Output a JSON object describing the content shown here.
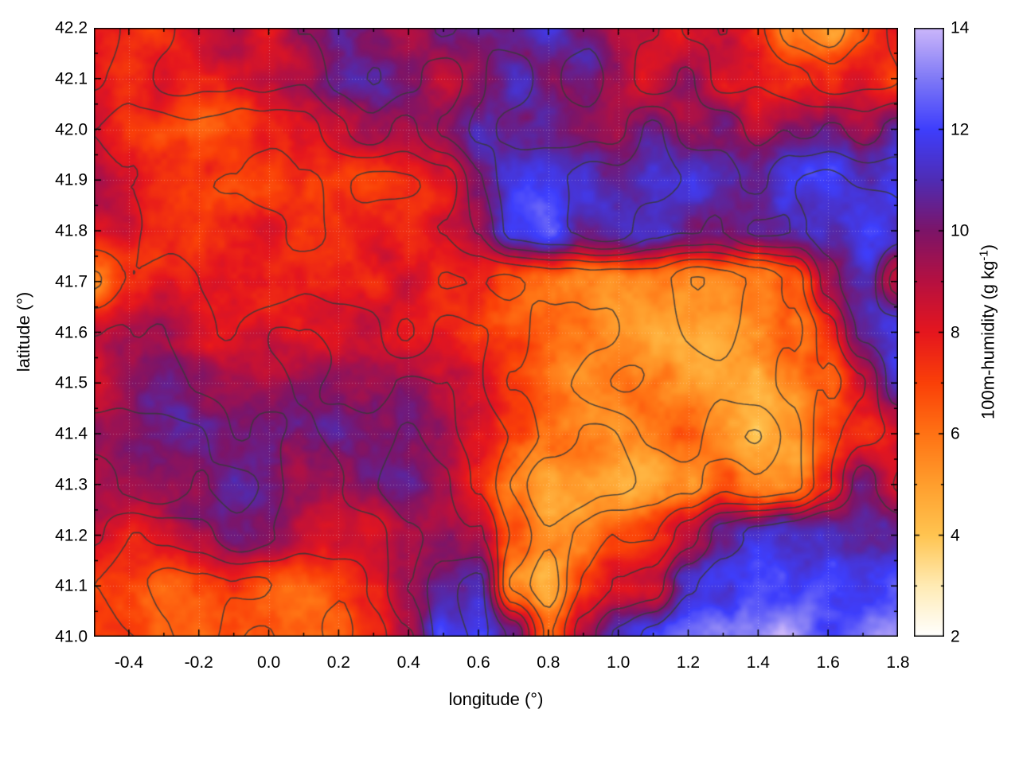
{
  "chart_data": {
    "type": "heatmap",
    "title": "",
    "xlabel": "longitude (°)",
    "ylabel": "latitude (°)",
    "colorbar_label": {
      "text": "100m-humidity (g kg",
      "sup": "-1",
      "end": ")"
    },
    "x_range": [
      -0.5,
      1.8
    ],
    "y_range": [
      41.0,
      42.2
    ],
    "z_range": [
      2,
      14
    ],
    "x_tick_values": [
      -0.4,
      -0.2,
      0.0,
      0.2,
      0.4,
      0.6,
      0.8,
      1.0,
      1.2,
      1.4,
      1.6,
      1.8
    ],
    "x_tick_labels": [
      "-0.4",
      "-0.2",
      "0.0",
      "0.2",
      "0.4",
      "0.6",
      "0.8",
      "1.0",
      "1.2",
      "1.4",
      "1.6",
      "1.8"
    ],
    "y_tick_values": [
      41.0,
      41.1,
      41.2,
      41.3,
      41.4,
      41.5,
      41.6,
      41.7,
      41.8,
      41.9,
      42.0,
      42.1,
      42.2
    ],
    "y_tick_labels": [
      "41.0",
      "41.1",
      "41.2",
      "41.3",
      "41.4",
      "41.5",
      "41.6",
      "41.7",
      "41.8",
      "41.9",
      "42.0",
      "42.1",
      "42.2"
    ],
    "colorbar_tick_values": [
      2,
      4,
      6,
      8,
      10,
      12,
      14
    ],
    "colorbar_tick_labels": [
      "2",
      "4",
      "6",
      "8",
      "10",
      "12",
      "14"
    ],
    "grid_lon_start": -0.5,
    "grid_lon_step": 0.1,
    "grid_lat_start": 42.2,
    "grid_lat_step": -0.1,
    "humidity_grid": [
      [
        8.5,
        8.0,
        8.0,
        8.5,
        9.0,
        8.5,
        9.5,
        10.5,
        10.0,
        9.0,
        10.5,
        10.0,
        9.5,
        10.5,
        9.5,
        8.5,
        9.0,
        8.0,
        8.5,
        7.5,
        6.0,
        5.5,
        7.0,
        8.0
      ],
      [
        8.0,
        7.5,
        8.5,
        8.0,
        8.5,
        9.0,
        9.0,
        10.0,
        10.5,
        9.5,
        9.0,
        10.0,
        10.5,
        9.5,
        10.5,
        9.5,
        8.5,
        9.5,
        8.0,
        8.5,
        8.0,
        7.5,
        8.5,
        7.5
      ],
      [
        8.0,
        7.0,
        6.5,
        6.5,
        7.0,
        7.5,
        8.0,
        8.5,
        9.5,
        8.5,
        9.5,
        10.5,
        10.0,
        10.5,
        10.0,
        9.5,
        10.5,
        9.0,
        9.5,
        8.5,
        9.5,
        10.0,
        9.0,
        10.5
      ],
      [
        8.5,
        8.0,
        7.5,
        7.0,
        6.5,
        6.0,
        7.0,
        7.5,
        7.0,
        7.0,
        7.5,
        9.5,
        11.0,
        11.5,
        11.5,
        11.0,
        11.5,
        11.0,
        10.5,
        10.0,
        11.0,
        11.5,
        11.0,
        11.5
      ],
      [
        8.0,
        8.5,
        8.0,
        7.5,
        8.0,
        8.0,
        7.5,
        8.0,
        8.0,
        7.5,
        8.0,
        9.0,
        11.5,
        12.0,
        11.5,
        11.5,
        11.0,
        10.5,
        10.0,
        10.5,
        11.0,
        11.5,
        12.0,
        11.5
      ],
      [
        6.5,
        8.0,
        8.5,
        8.0,
        8.5,
        8.0,
        8.5,
        8.0,
        7.5,
        8.0,
        7.5,
        7.5,
        7.0,
        6.5,
        6.0,
        5.5,
        5.5,
        5.0,
        5.5,
        6.0,
        7.0,
        10.0,
        11.5,
        8.0
      ],
      [
        8.5,
        9.0,
        9.5,
        9.0,
        8.5,
        9.0,
        8.5,
        8.0,
        8.5,
        7.5,
        8.0,
        7.5,
        7.0,
        6.5,
        6.0,
        5.5,
        5.0,
        4.8,
        4.5,
        5.0,
        6.0,
        8.0,
        11.0,
        11.5
      ],
      [
        9.0,
        9.5,
        10.0,
        9.5,
        9.5,
        9.0,
        9.5,
        9.0,
        8.5,
        9.0,
        8.5,
        8.0,
        7.0,
        6.5,
        6.0,
        6.0,
        5.5,
        5.0,
        4.5,
        4.8,
        5.5,
        6.5,
        8.5,
        11.0
      ],
      [
        9.5,
        10.0,
        10.0,
        10.0,
        9.5,
        10.0,
        9.5,
        9.5,
        9.0,
        9.5,
        9.0,
        8.0,
        7.0,
        6.0,
        5.5,
        5.5,
        6.0,
        6.5,
        5.0,
        4.5,
        5.0,
        7.0,
        8.0,
        8.5
      ],
      [
        9.0,
        9.5,
        10.0,
        9.5,
        10.0,
        10.0,
        9.5,
        9.0,
        9.5,
        10.0,
        9.5,
        8.0,
        6.0,
        5.0,
        4.5,
        4.5,
        4.8,
        5.5,
        6.5,
        5.5,
        6.0,
        8.0,
        10.5,
        9.0
      ],
      [
        8.5,
        8.0,
        8.5,
        9.0,
        9.5,
        9.0,
        8.5,
        9.0,
        8.5,
        9.5,
        10.0,
        9.5,
        7.0,
        5.5,
        6.0,
        6.5,
        7.0,
        8.5,
        10.5,
        11.5,
        11.5,
        12.0,
        11.5,
        11.0
      ],
      [
        7.0,
        6.5,
        6.0,
        6.5,
        7.0,
        6.5,
        6.0,
        6.5,
        7.5,
        9.0,
        11.0,
        11.5,
        5.5,
        4.5,
        7.0,
        8.0,
        8.5,
        11.0,
        12.0,
        12.5,
        12.0,
        12.5,
        12.0,
        12.5
      ],
      [
        7.5,
        7.0,
        6.5,
        6.0,
        6.5,
        7.0,
        6.5,
        6.0,
        7.0,
        8.5,
        11.5,
        12.0,
        10.5,
        6.5,
        9.0,
        10.5,
        11.5,
        12.5,
        13.0,
        13.0,
        13.5,
        13.0,
        13.5,
        13.5
      ]
    ],
    "colormap_stops": [
      {
        "v": 2,
        "c": [
          255,
          255,
          255
        ]
      },
      {
        "v": 3,
        "c": [
          255,
          235,
          180
        ]
      },
      {
        "v": 4,
        "c": [
          255,
          196,
          80
        ]
      },
      {
        "v": 5,
        "c": [
          255,
          158,
          45
        ]
      },
      {
        "v": 6,
        "c": [
          255,
          114,
          20
        ]
      },
      {
        "v": 7,
        "c": [
          250,
          64,
          8
        ]
      },
      {
        "v": 8,
        "c": [
          229,
          22,
          30
        ]
      },
      {
        "v": 9,
        "c": [
          182,
          16,
          64
        ]
      },
      {
        "v": 10,
        "c": [
          124,
          20,
          104
        ]
      },
      {
        "v": 11,
        "c": [
          79,
          44,
          180
        ]
      },
      {
        "v": 12,
        "c": [
          62,
          62,
          252
        ]
      },
      {
        "v": 13,
        "c": [
          127,
          121,
          246
        ]
      },
      {
        "v": 14,
        "c": [
          203,
          182,
          250
        ]
      }
    ],
    "contours": {
      "color": "#383838",
      "line_width": 1.6,
      "levels": [
        -0.6,
        0.4,
        1.4,
        2.4,
        3.4,
        4.4,
        5.2
      ]
    }
  }
}
